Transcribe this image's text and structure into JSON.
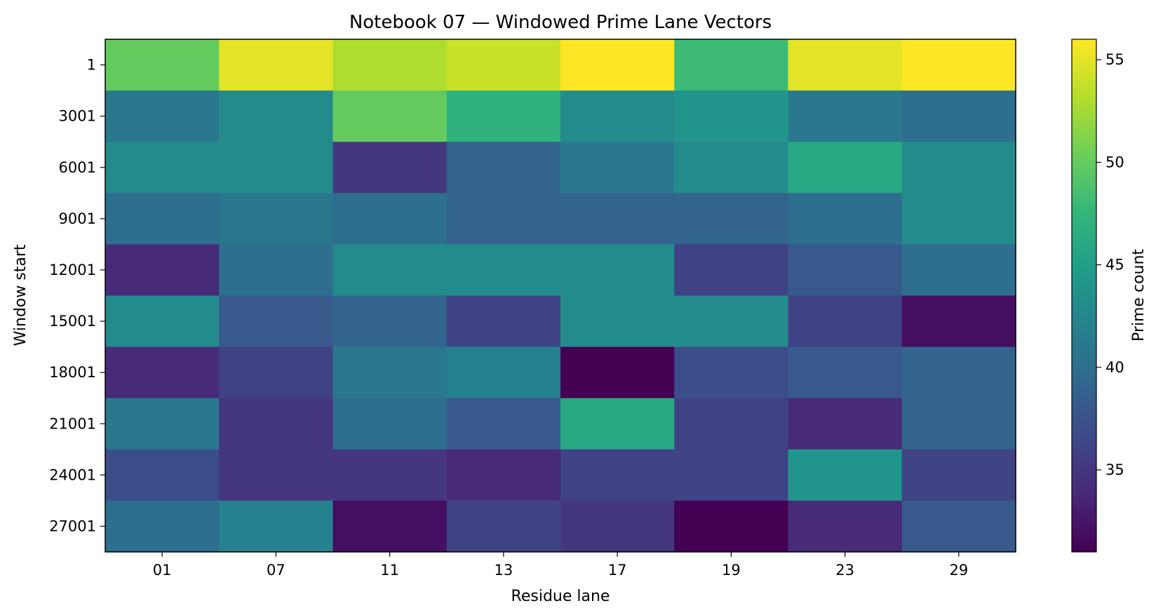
{
  "chart_data": {
    "type": "heatmap",
    "title": "Notebook 07 — Windowed Prime Lane Vectors",
    "xlabel": "Residue lane",
    "ylabel": "Window start",
    "x_categories": [
      "01",
      "07",
      "11",
      "13",
      "17",
      "19",
      "23",
      "29"
    ],
    "y_categories": [
      "1",
      "3001",
      "6001",
      "9001",
      "12001",
      "15001",
      "18001",
      "21001",
      "24001",
      "27001"
    ],
    "values": [
      [
        50,
        55,
        53,
        54,
        56,
        48,
        55,
        56
      ],
      [
        41,
        43,
        50,
        47,
        43,
        44,
        41,
        40
      ],
      [
        43,
        43,
        35,
        39,
        41,
        43,
        46,
        43
      ],
      [
        40,
        41,
        40,
        39,
        39,
        39,
        40,
        43
      ],
      [
        34,
        40,
        43,
        43,
        43,
        36,
        38,
        40
      ],
      [
        43,
        38,
        39,
        36,
        43,
        43,
        36,
        32
      ],
      [
        34,
        36,
        41,
        42,
        31,
        37,
        38,
        39
      ],
      [
        41,
        35,
        40,
        38,
        46,
        36,
        34,
        39
      ],
      [
        37,
        35,
        35,
        34,
        36,
        36,
        44,
        36
      ],
      [
        40,
        42,
        32,
        36,
        35,
        31,
        34,
        38
      ]
    ],
    "colormap": "viridis",
    "colorbar": {
      "label": "Prime count",
      "vmin": 31,
      "vmax": 56,
      "ticks": [
        35,
        40,
        45,
        50,
        55
      ]
    },
    "grid": false
  }
}
